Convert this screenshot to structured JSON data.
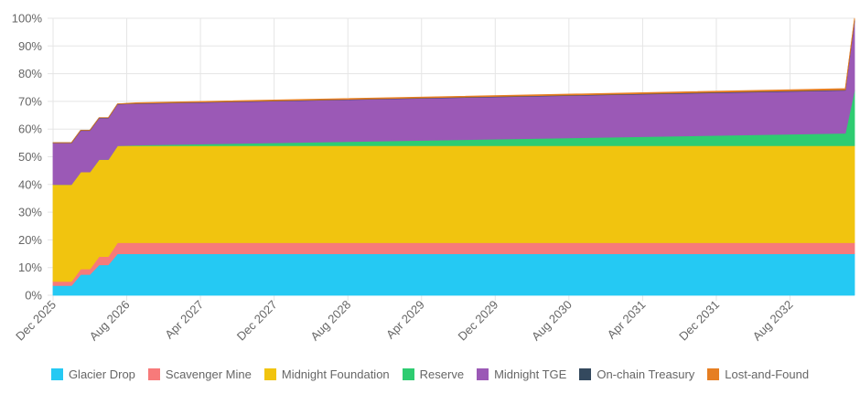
{
  "chart_data": {
    "type": "area",
    "stacked": true,
    "grid": true,
    "legend_position": "bottom",
    "ylim": [
      0,
      100
    ],
    "y_tick_labels": [
      "0%",
      "10%",
      "20%",
      "30%",
      "40%",
      "50%",
      "60%",
      "70%",
      "80%",
      "90%",
      "100%"
    ],
    "x_tick_labels": [
      "Dec 2025",
      "Aug 2026",
      "Apr 2027",
      "Dec 2027",
      "Aug 2028",
      "Apr 2029",
      "Dec 2029",
      "Aug 2030",
      "Apr 2031",
      "Dec 2031",
      "Aug 2032"
    ],
    "x_tick_months": [
      0,
      8,
      16,
      24,
      32,
      40,
      48,
      56,
      64,
      72,
      80
    ],
    "x_month_max": 87,
    "x": [
      0,
      2,
      3,
      4,
      5,
      6,
      7,
      8,
      9,
      86,
      87
    ],
    "series": [
      {
        "name": "Glacier Drop",
        "color": "#25c9f3",
        "values": [
          3.5,
          3.5,
          7.5,
          7.5,
          11,
          11,
          15,
          15,
          15,
          15,
          15
        ]
      },
      {
        "name": "Scavenger Mine",
        "color": "#f77a7a",
        "values": [
          1.5,
          1.5,
          2,
          2,
          3,
          3,
          4,
          4,
          4,
          4,
          4
        ]
      },
      {
        "name": "Midnight Foundation",
        "color": "#f1c40f",
        "values": [
          35,
          35,
          35,
          35,
          35,
          35,
          35,
          35,
          35,
          35,
          35
        ]
      },
      {
        "name": "Reserve",
        "color": "#2ecc71",
        "values": [
          0,
          0,
          0,
          0,
          0,
          0,
          0,
          0.1,
          0.2,
          4.5,
          20
        ]
      },
      {
        "name": "Midnight TGE",
        "color": "#9b59b6",
        "values": [
          15,
          15,
          15,
          15,
          15,
          15,
          15,
          15,
          15,
          15.5,
          25
        ]
      },
      {
        "name": "On-chain Treasury",
        "color": "#34495e",
        "values": [
          0.1,
          0.1,
          0.1,
          0.1,
          0.1,
          0.1,
          0.1,
          0.1,
          0.1,
          0.2,
          0.5
        ]
      },
      {
        "name": "Lost-and-Found",
        "color": "#e67e22",
        "values": [
          0,
          0,
          0,
          0,
          0,
          0,
          0,
          0.1,
          0.2,
          0.4,
          0.5
        ]
      }
    ]
  }
}
